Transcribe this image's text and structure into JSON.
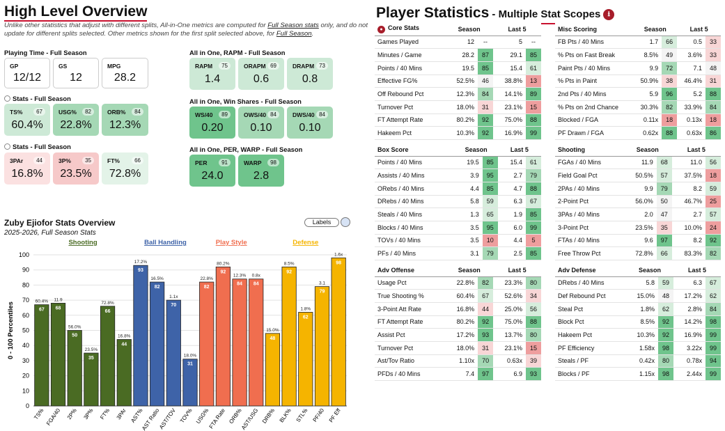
{
  "overview": {
    "title": "High Level Overview",
    "desc1": "Unlike other statistics that adjust with different splits, All-in-One metrics are computed for ",
    "desc_link1": "Full Season stats",
    "desc2": " only, and do not update for different splits selected. Other metrics shown for the first split selected above, for ",
    "desc_link2": "Full Season",
    "desc3": ".",
    "playing_time": {
      "label": "Playing Time - Full Season",
      "items": [
        {
          "label": "GP",
          "value": "12/12"
        },
        {
          "label": "GS",
          "value": "12"
        },
        {
          "label": "MPG",
          "value": "28.2"
        }
      ]
    },
    "stats1": {
      "label": "Stats - Full Season",
      "items": [
        {
          "label": "TS%",
          "value": "60.4%",
          "pct": "67"
        },
        {
          "label": "USG%",
          "value": "22.8%",
          "pct": "82"
        },
        {
          "label": "ORB%",
          "value": "12.3%",
          "pct": "84"
        }
      ]
    },
    "stats2": {
      "label": "Stats - Full Season",
      "items": [
        {
          "label": "3PAr",
          "value": "16.8%",
          "pct": "44"
        },
        {
          "label": "3P%",
          "value": "23.5%",
          "pct": "35"
        },
        {
          "label": "FT%",
          "value": "72.8%",
          "pct": "66"
        }
      ]
    },
    "rapm": {
      "label": "All in One, RAPM - Full Season",
      "items": [
        {
          "label": "RAPM",
          "value": "1.4",
          "pct": "75"
        },
        {
          "label": "ORAPM",
          "value": "0.6",
          "pct": "69"
        },
        {
          "label": "DRAPM",
          "value": "0.8",
          "pct": "73"
        }
      ]
    },
    "ws": {
      "label": "All in One, Win Shares - Full Season",
      "items": [
        {
          "label": "WS/40",
          "value": "0.20",
          "pct": "89"
        },
        {
          "label": "OWS/40",
          "value": "0.10",
          "pct": "84"
        },
        {
          "label": "DWS/40",
          "value": "0.10",
          "pct": "84"
        }
      ]
    },
    "per": {
      "label": "All in One, PER, WARP - Full Season",
      "items": [
        {
          "label": "PER",
          "value": "24.0",
          "pct": "91"
        },
        {
          "label": "WARP",
          "value": "2.8",
          "pct": "98"
        }
      ]
    }
  },
  "chart": {
    "title": "Zuby Ejiofor Stats Overview",
    "subtitle": "2025-2026, Full Season Stats",
    "labels_button": "Labels",
    "ylabel": "0 - 100 Percentiles",
    "groups": [
      {
        "name": "Shooting",
        "color": "#4a6b23"
      },
      {
        "name": "Ball Handling",
        "color": "#3e63a8"
      },
      {
        "name": "Play Style",
        "color": "#f06e4f"
      },
      {
        "name": "Defense",
        "color": "#f5b400"
      }
    ]
  },
  "chart_data": {
    "type": "bar",
    "title": "Zuby Ejiofor Stats Overview",
    "ylabel": "0 - 100 Percentiles",
    "ylim": [
      0,
      100
    ],
    "yticks": [
      0,
      10,
      20,
      30,
      40,
      50,
      60,
      70,
      80,
      90,
      100
    ],
    "categories": [
      "TS%",
      "FGA/40",
      "2P%",
      "3P%",
      "FT%",
      "3PAr",
      "AST%",
      "AST Ratio",
      "AST/TOV",
      "TOV%",
      "USG%",
      "FTA Rate",
      "ORB%",
      "AST/USG",
      "DRB%",
      "BLK%",
      "STL%",
      "PF/40",
      "PF Eff"
    ],
    "values": [
      67,
      68,
      50,
      35,
      66,
      44,
      93,
      82,
      70,
      31,
      82,
      92,
      84,
      84,
      48,
      92,
      62,
      79,
      98
    ],
    "raw_labels": [
      "60.4%",
      "11.9",
      "56.0%",
      "23.5%",
      "72.8%",
      "16.8%",
      "17.2%",
      "16.5%",
      "1.1x",
      "18.0%",
      "22.8%",
      "80.2%",
      "12.3%",
      "0.8x",
      "15.0%",
      "8.5%",
      "1.8%",
      "3.1",
      "1.6x"
    ],
    "group_index": [
      0,
      0,
      0,
      0,
      0,
      0,
      1,
      1,
      1,
      1,
      2,
      2,
      2,
      2,
      3,
      3,
      3,
      3,
      3
    ]
  },
  "player_stats": {
    "title": "Player Statistics",
    "subtitle": " - Multiple Stat Scopes",
    "download_icon": "download-icon",
    "col_season": "Season",
    "col_last5": "Last 5",
    "tables": [
      {
        "title": "Core Stats",
        "rows": [
          {
            "name": "Games Played",
            "s": "12",
            "sp": "--",
            "l": "5",
            "lp": "--"
          },
          {
            "name": "Minutes / Game",
            "s": "28.2",
            "sp": "87",
            "l": "29.1",
            "lp": "85"
          },
          {
            "name": "Points / 40 Mins",
            "s": "19.5",
            "sp": "85",
            "l": "15.4",
            "lp": "61"
          },
          {
            "name": "Effective FG%",
            "s": "52.5%",
            "sp": "46",
            "l": "38.8%",
            "lp": "13"
          },
          {
            "name": "Off Rebound Pct",
            "s": "12.3%",
            "sp": "84",
            "l": "14.1%",
            "lp": "89"
          },
          {
            "name": "Turnover Pct",
            "s": "18.0%",
            "sp": "31",
            "l": "23.1%",
            "lp": "15"
          },
          {
            "name": "FT Attempt Rate",
            "s": "80.2%",
            "sp": "92",
            "l": "75.0%",
            "lp": "88"
          },
          {
            "name": "Hakeem Pct",
            "s": "10.3%",
            "sp": "92",
            "l": "16.9%",
            "lp": "99"
          }
        ]
      },
      {
        "title": "Misc Scoring",
        "rows": [
          {
            "name": "FB Pts / 40 Mins",
            "s": "1.7",
            "sp": "66",
            "l": "0.5",
            "lp": "33"
          },
          {
            "name": "% Pts on Fast Break",
            "s": "8.5%",
            "sp": "49",
            "l": "3.6%",
            "lp": "33"
          },
          {
            "name": "Paint Pts / 40 Mins",
            "s": "9.9",
            "sp": "72",
            "l": "7.1",
            "lp": "48"
          },
          {
            "name": "% Pts in Paint",
            "s": "50.9%",
            "sp": "38",
            "l": "46.4%",
            "lp": "31"
          },
          {
            "name": "2nd Pts / 40 Mins",
            "s": "5.9",
            "sp": "96",
            "l": "5.2",
            "lp": "88"
          },
          {
            "name": "% Pts on 2nd Chance",
            "s": "30.3%",
            "sp": "82",
            "l": "33.9%",
            "lp": "84"
          },
          {
            "name": "Blocked / FGA",
            "s": "0.11x",
            "sp": "18",
            "l": "0.13x",
            "lp": "18"
          },
          {
            "name": "PF Drawn / FGA",
            "s": "0.62x",
            "sp": "88",
            "l": "0.63x",
            "lp": "86"
          }
        ]
      },
      {
        "title": "Box Score",
        "rows": [
          {
            "name": "Points / 40 Mins",
            "s": "19.5",
            "sp": "85",
            "l": "15.4",
            "lp": "61"
          },
          {
            "name": "Assists / 40 Mins",
            "s": "3.9",
            "sp": "95",
            "l": "2.7",
            "lp": "79"
          },
          {
            "name": "ORebs / 40 Mins",
            "s": "4.4",
            "sp": "85",
            "l": "4.7",
            "lp": "88"
          },
          {
            "name": "DRebs / 40 Mins",
            "s": "5.8",
            "sp": "59",
            "l": "6.3",
            "lp": "67"
          },
          {
            "name": "Steals / 40 Mins",
            "s": "1.3",
            "sp": "65",
            "l": "1.9",
            "lp": "85"
          },
          {
            "name": "Blocks / 40 Mins",
            "s": "3.5",
            "sp": "95",
            "l": "6.0",
            "lp": "99"
          },
          {
            "name": "TOVs / 40 Mins",
            "s": "3.5",
            "sp": "10",
            "l": "4.4",
            "lp": "5"
          },
          {
            "name": "PFs / 40 Mins",
            "s": "3.1",
            "sp": "79",
            "l": "2.5",
            "lp": "85"
          }
        ]
      },
      {
        "title": "Shooting",
        "rows": [
          {
            "name": "FGAs / 40 Mins",
            "s": "11.9",
            "sp": "68",
            "l": "11.0",
            "lp": "56"
          },
          {
            "name": "Field Goal Pct",
            "s": "50.5%",
            "sp": "57",
            "l": "37.5%",
            "lp": "18"
          },
          {
            "name": "2PAs / 40 Mins",
            "s": "9.9",
            "sp": "79",
            "l": "8.2",
            "lp": "59"
          },
          {
            "name": "2-Point Pct",
            "s": "56.0%",
            "sp": "50",
            "l": "46.7%",
            "lp": "25"
          },
          {
            "name": "3PAs / 40 Mins",
            "s": "2.0",
            "sp": "47",
            "l": "2.7",
            "lp": "57"
          },
          {
            "name": "3-Point Pct",
            "s": "23.5%",
            "sp": "35",
            "l": "10.0%",
            "lp": "24"
          },
          {
            "name": "FTAs / 40 Mins",
            "s": "9.6",
            "sp": "97",
            "l": "8.2",
            "lp": "92"
          },
          {
            "name": "Free Throw Pct",
            "s": "72.8%",
            "sp": "66",
            "l": "83.3%",
            "lp": "82"
          }
        ]
      },
      {
        "title": "Adv Offense",
        "rows": [
          {
            "name": "Usage Pct",
            "s": "22.8%",
            "sp": "82",
            "l": "23.3%",
            "lp": "80"
          },
          {
            "name": "True Shooting %",
            "s": "60.4%",
            "sp": "67",
            "l": "52.6%",
            "lp": "34"
          },
          {
            "name": "3-Point Att Rate",
            "s": "16.8%",
            "sp": "44",
            "l": "25.0%",
            "lp": "56"
          },
          {
            "name": "FT Attempt Rate",
            "s": "80.2%",
            "sp": "92",
            "l": "75.0%",
            "lp": "88"
          },
          {
            "name": "Assist Pct",
            "s": "17.2%",
            "sp": "93",
            "l": "13.7%",
            "lp": "80"
          },
          {
            "name": "Turnover Pct",
            "s": "18.0%",
            "sp": "31",
            "l": "23.1%",
            "lp": "15"
          },
          {
            "name": "Ast/Tov Ratio",
            "s": "1.10x",
            "sp": "70",
            "l": "0.63x",
            "lp": "39"
          },
          {
            "name": "PFDs / 40 Mins",
            "s": "7.4",
            "sp": "97",
            "l": "6.9",
            "lp": "93"
          }
        ]
      },
      {
        "title": "Adv Defense",
        "rows": [
          {
            "name": "DRebs / 40 Mins",
            "s": "5.8",
            "sp": "59",
            "l": "6.3",
            "lp": "67"
          },
          {
            "name": "Def Rebound Pct",
            "s": "15.0%",
            "sp": "48",
            "l": "17.2%",
            "lp": "62"
          },
          {
            "name": "Steal Pct",
            "s": "1.8%",
            "sp": "62",
            "l": "2.8%",
            "lp": "84"
          },
          {
            "name": "Block Pct",
            "s": "8.5%",
            "sp": "92",
            "l": "14.2%",
            "lp": "98"
          },
          {
            "name": "Hakeem Pct",
            "s": "10.3%",
            "sp": "92",
            "l": "16.9%",
            "lp": "99"
          },
          {
            "name": "PF Efficiency",
            "s": "1.58x",
            "sp": "98",
            "l": "3.22x",
            "lp": "99"
          },
          {
            "name": "Steals / PF",
            "s": "0.42x",
            "sp": "80",
            "l": "0.78x",
            "lp": "94"
          },
          {
            "name": "Blocks / PF",
            "s": "1.15x",
            "sp": "98",
            "l": "2.44x",
            "lp": "99"
          }
        ]
      }
    ]
  }
}
